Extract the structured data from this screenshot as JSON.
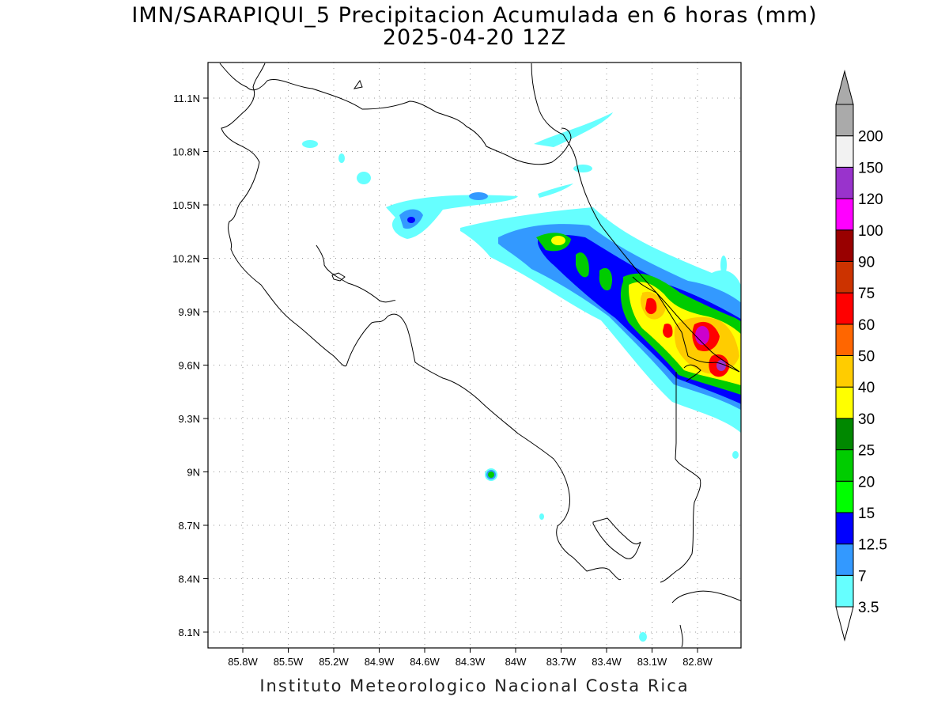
{
  "header": {
    "title_line1": "IMN/SARAPIQUI_5 Precipitacion Acumulada en 6 horas (mm)",
    "title_line2": "2025-04-20 12Z"
  },
  "footer": {
    "credit": "Instituto Meteorologico Nacional Costa Rica"
  },
  "map": {
    "region": "Costa Rica",
    "lon_range": [
      -86.0,
      -82.6
    ],
    "lat_range": [
      7.9,
      11.25
    ],
    "lon_ticks": [
      "85.8W",
      "85.5W",
      "85.2W",
      "84.9W",
      "84.6W",
      "84.3W",
      "84W",
      "83.7W",
      "83.4W",
      "83.1W",
      "82.8W"
    ],
    "lat_ticks": [
      "11.1N",
      "10.8N",
      "10.5N",
      "10.2N",
      "9.9N",
      "9.6N",
      "9.3N",
      "9N",
      "8.7N",
      "8.4N",
      "8.1N"
    ],
    "grid": true,
    "grid_style": "dotted"
  },
  "colorbar": {
    "levels": [
      "3.5",
      "7",
      "12.5",
      "15",
      "20",
      "25",
      "30",
      "40",
      "50",
      "60",
      "75",
      "90",
      "100",
      "120",
      "150",
      "200"
    ],
    "colors": [
      "#66ffff",
      "#3399ff",
      "#0000ff",
      "#00ff00",
      "#00cc00",
      "#008800",
      "#ffff00",
      "#ffcc00",
      "#ff6600",
      "#ff0000",
      "#cc3300",
      "#990000",
      "#ff00ff",
      "#9933cc",
      "#f2f2f2",
      "#aaaaaa"
    ],
    "lower_extension_color": "#ffffff",
    "upper_extension_color": "#aaaaaa"
  }
}
